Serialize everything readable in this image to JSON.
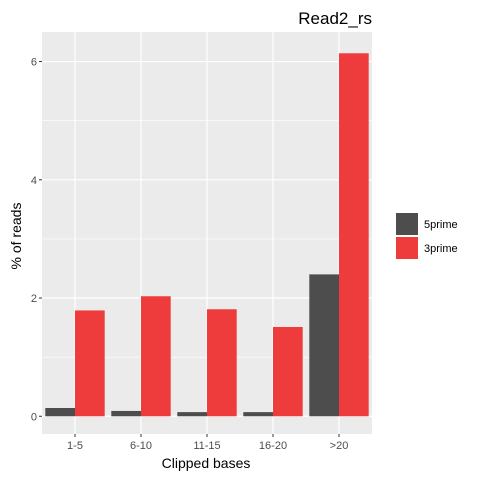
{
  "chart_data": {
    "type": "bar",
    "title": "Read2_rs",
    "xlabel": "Clipped bases",
    "ylabel": "% of reads",
    "categories": [
      "1-5",
      "6-10",
      "11-15",
      "16-20",
      ">20"
    ],
    "series": [
      {
        "name": "5prime",
        "color": "#4d4d4d",
        "values": [
          0.14,
          0.09,
          0.07,
          0.07,
          2.4
        ]
      },
      {
        "name": "3prime",
        "color": "#ee3b3b",
        "values": [
          1.79,
          2.03,
          1.81,
          1.51,
          6.14
        ]
      }
    ],
    "ylim": [
      -0.3,
      6.5
    ],
    "yticks": [
      0,
      2,
      4,
      6
    ],
    "grid": true,
    "legend_position": "right",
    "panel_color": "#ebebeb",
    "grid_color": "#ffffff"
  }
}
